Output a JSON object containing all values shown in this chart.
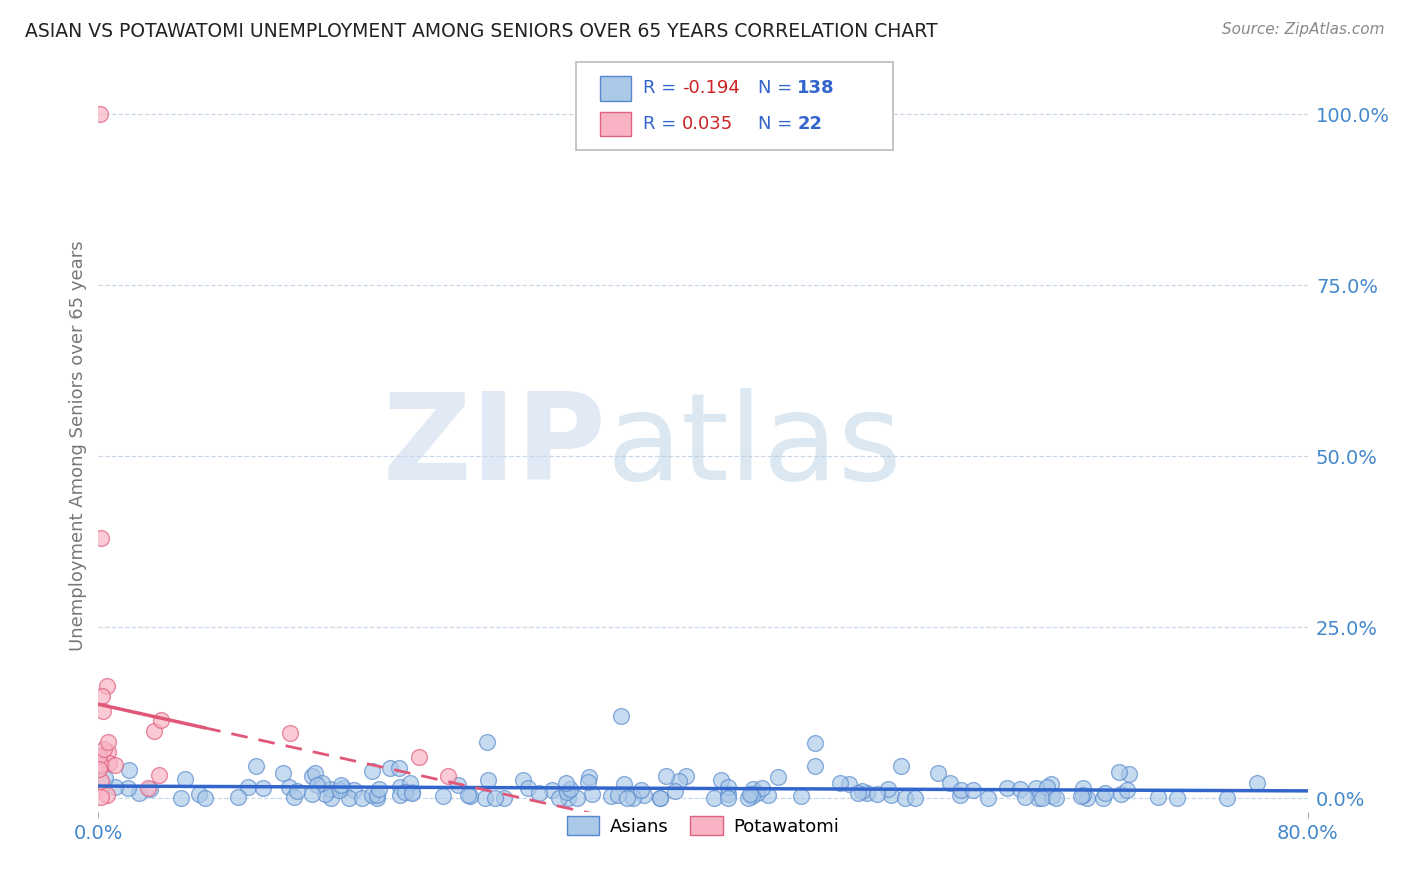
{
  "title": "ASIAN VS POTAWATOMI UNEMPLOYMENT AMONG SENIORS OVER 65 YEARS CORRELATION CHART",
  "source": "Source: ZipAtlas.com",
  "ylabel": "Unemployment Among Seniors over 65 years",
  "xlim": [
    0.0,
    0.8
  ],
  "ylim": [
    -0.02,
    1.05
  ],
  "yticks_right": [
    0.0,
    0.25,
    0.5,
    0.75,
    1.0
  ],
  "ytick_labels_right": [
    "0.0%",
    "25.0%",
    "50.0%",
    "75.0%",
    "100.0%"
  ],
  "asian_color": "#aac8e8",
  "potawatomi_color": "#f8b4c4",
  "asian_edge_color": "#5588cc",
  "potawatomi_edge_color": "#e06080",
  "trend_asian_color": "#3366cc",
  "trend_potawatomi_color": "#e05878",
  "R_asian": -0.194,
  "N_asian": 138,
  "R_potawatomi": 0.035,
  "N_potawatomi": 22,
  "watermark_zip": "ZIP",
  "watermark_atlas": "atlas",
  "background_color": "#ffffff",
  "grid_color": "#c8d8e8",
  "legend_R_color": "#cc2222",
  "legend_N_color": "#3366cc",
  "title_color": "#222222",
  "source_color": "#888888",
  "axis_label_color": "#777777",
  "tick_color": "#4488cc"
}
